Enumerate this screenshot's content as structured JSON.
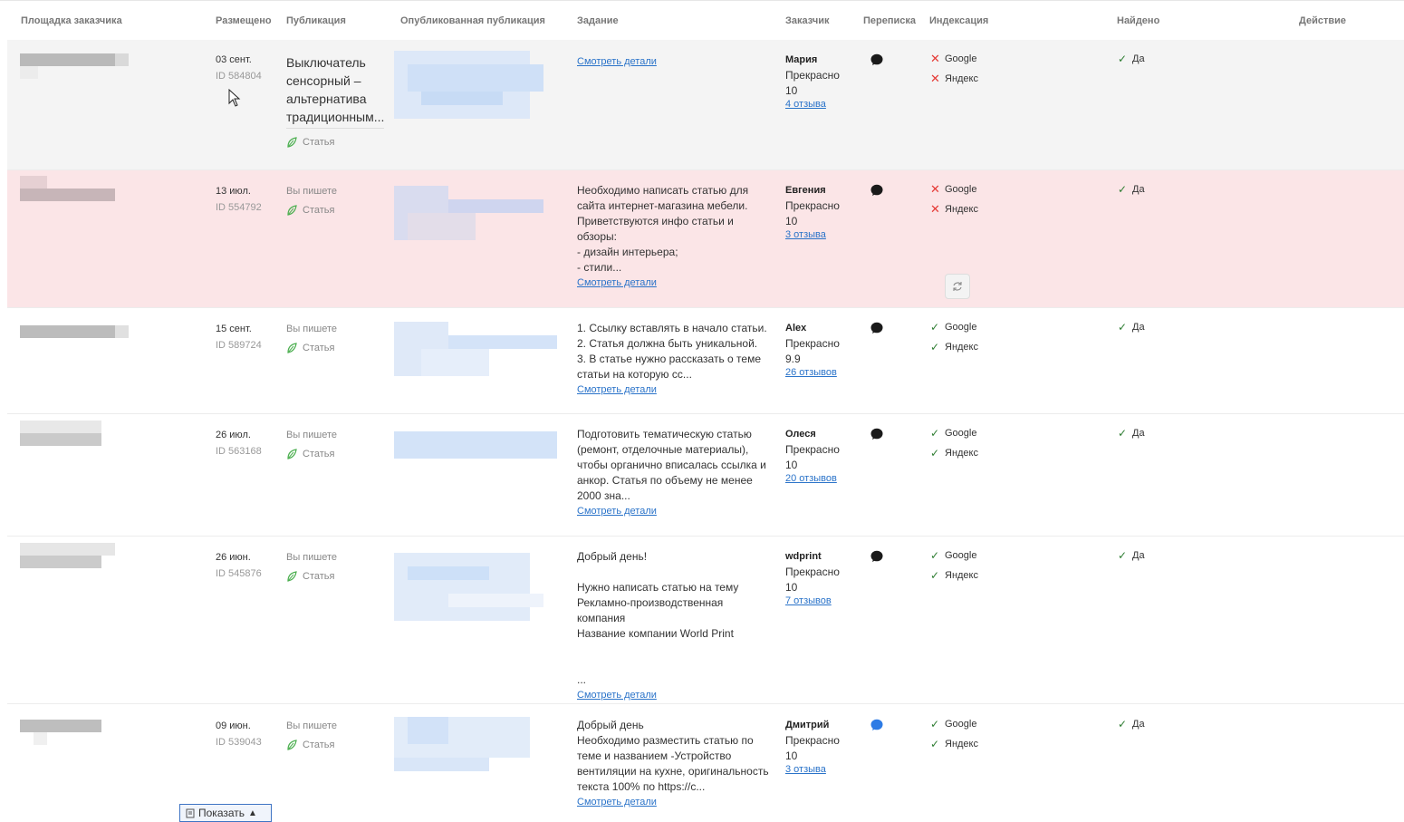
{
  "header": {
    "site": "Площадка заказчика",
    "placed": "Размещено",
    "publication": "Публикация",
    "published": "Опубликованная публикация",
    "task": "Задание",
    "customer": "Заказчик",
    "messages": "Переписка",
    "indexing": "Индексация",
    "found": "Найдено",
    "action": "Действие"
  },
  "labels": {
    "article": "Статья",
    "details": "Смотреть детали",
    "google": "Google",
    "yandex": "Яндекс",
    "yes": "Да",
    "show_button": "Показать"
  },
  "rows": [
    {
      "date": "03 сент.",
      "id": "ID 584804",
      "pub_title": "Выключатель сенсорный – альтернатива традиционным...",
      "task": "",
      "customer": "Мария",
      "rating_word": "Прекрасно",
      "rating": "10",
      "reviews": "4 отзыва",
      "google": "no",
      "yandex": "no",
      "found": "Да"
    },
    {
      "date": "13 июл.",
      "id": "ID 554792",
      "pub_status": "Вы пишете",
      "task": "Необходимо написать статью для сайта интернет-магазина мебели. Приветствуются инфо статьи и обзоры:\n- дизайн интерьера;\n- стили...",
      "customer": "Евгения",
      "rating_word": "Прекрасно",
      "rating": "10",
      "reviews": "3 отзыва",
      "google": "no",
      "yandex": "no",
      "found": "Да"
    },
    {
      "date": "15 сент.",
      "id": "ID 589724",
      "pub_status": "Вы пишете",
      "task": "1. Ссылку вставлять в начало статьи.\n2. Статья должна быть уникальной.\n3. В статье нужно рассказать о теме статьи на которую сс...",
      "customer": "Alex",
      "rating_word": "Прекрасно",
      "rating": "9.9",
      "reviews": "26 отзывов",
      "google": "yes",
      "yandex": "yes",
      "found": "Да"
    },
    {
      "date": "26 июл.",
      "id": "ID 563168",
      "pub_status": "Вы пишете",
      "task": "Подготовить тематическую статью (ремонт, отделочные материалы), чтобы органично вписалась ссылка и анкор. Статья по объему не менее 2000 зна...",
      "customer": "Олеся",
      "rating_word": "Прекрасно",
      "rating": "10",
      "reviews": "20 отзывов",
      "google": "yes",
      "yandex": "yes",
      "found": "Да"
    },
    {
      "date": "26 июн.",
      "id": "ID 545876",
      "pub_status": "Вы пишете",
      "task": "Добрый день!\n\nНужно написать статью на тему Рекламно-производственная компания\nНазвание компании World Print\n\n\n...",
      "customer": "wdprint",
      "rating_word": "Прекрасно",
      "rating": "10",
      "reviews": "7 отзывов",
      "google": "yes",
      "yandex": "yes",
      "found": "Да"
    },
    {
      "date": "09 июн.",
      "id": "ID 539043",
      "pub_status": "Вы пишете",
      "task": "Добрый день\nНеобходимо разместить статью по теме и названием -Устройство вентиляции на кухне, оригинальность текста 100% по https://c...",
      "customer": "Дмитрий",
      "rating_word": "Прекрасно",
      "rating": "10",
      "reviews": "3 отзыва",
      "google": "yes",
      "yandex": "yes",
      "found": "Да"
    }
  ],
  "colors": {
    "link": "#2a73c9",
    "highlight_row": "#fbe5e7",
    "hover_row": "#f4f4f4",
    "check": "#2e7d32",
    "cross": "#e53935",
    "bubble_unread": "#2d7be5"
  }
}
